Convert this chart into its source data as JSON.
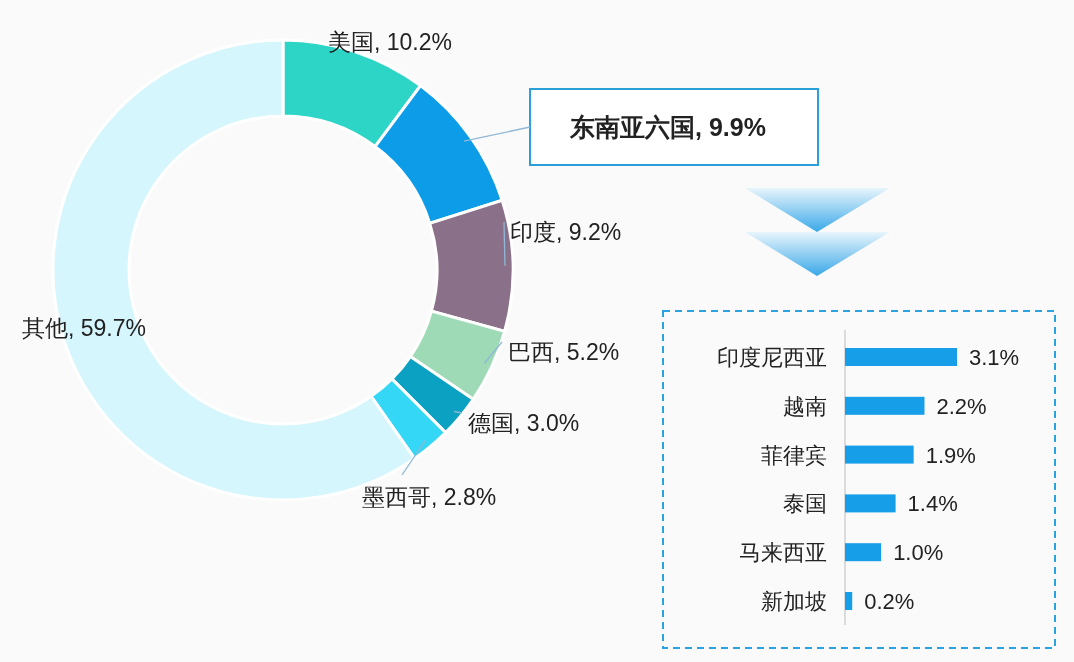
{
  "chart_data": [
    {
      "type": "donut",
      "categories": [
        "美国",
        "东南亚六国",
        "印度",
        "巴西",
        "德国",
        "墨西哥",
        "其他"
      ],
      "values": [
        10.2,
        9.9,
        9.2,
        5.2,
        3.0,
        2.8,
        59.7
      ],
      "colors": [
        "#2dd5c6",
        "#0d9ce8",
        "#8a7189",
        "#9edab6",
        "#0aa1c2",
        "#35d7f6",
        "#d5f6fc"
      ],
      "value_labels": [
        "10.2%",
        "9.9%",
        "9.2%",
        "5.2%",
        "3.0%",
        "2.8%",
        "59.7%"
      ]
    },
    {
      "type": "bar",
      "orientation": "horizontal",
      "categories": [
        "印度尼西亚",
        "越南",
        "菲律宾",
        "泰国",
        "马来西亚",
        "新加坡"
      ],
      "values": [
        3.1,
        2.2,
        1.9,
        1.4,
        1.0,
        0.2
      ],
      "color": "#169ee8",
      "value_labels": [
        "3.1%",
        "2.2%",
        "1.9%",
        "1.4%",
        "1.0%",
        "0.2%"
      ]
    }
  ]
}
